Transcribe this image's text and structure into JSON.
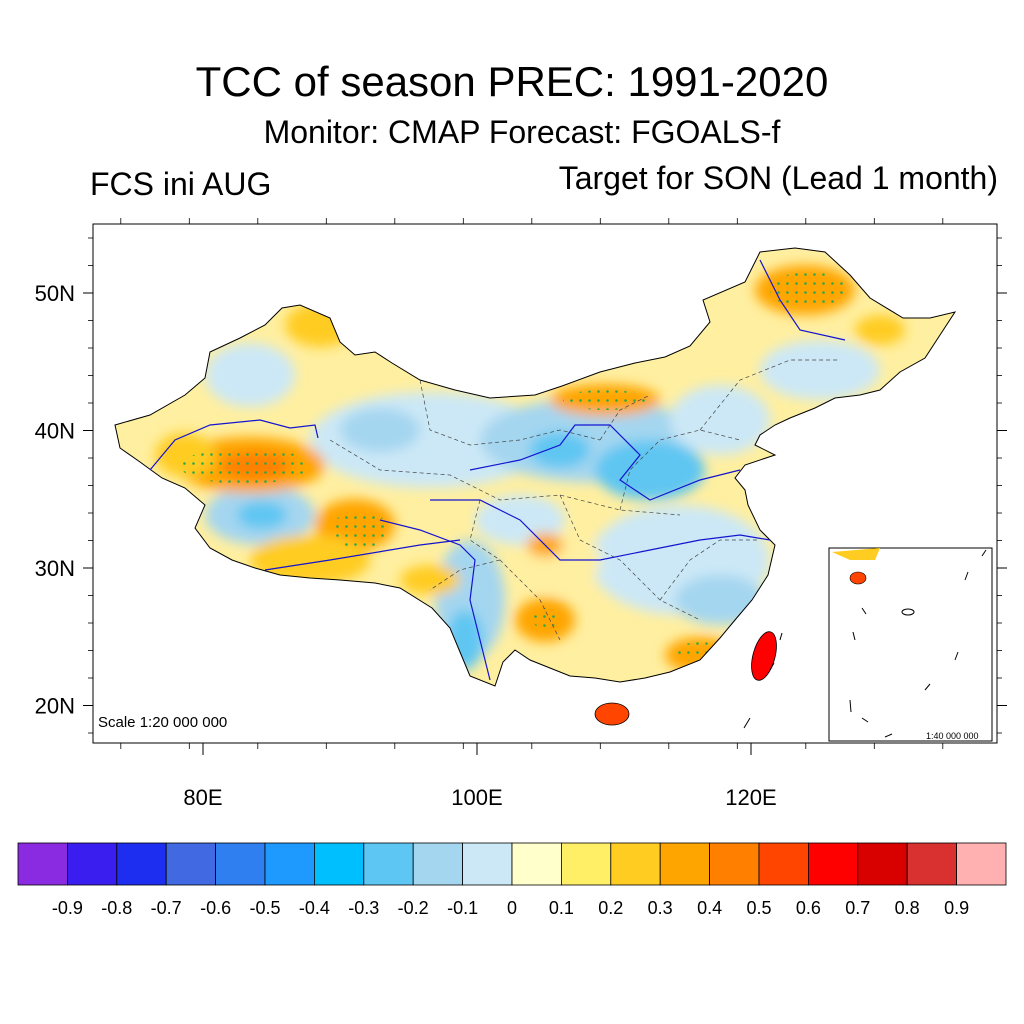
{
  "title": "TCC of season PREC: 1991-2020",
  "subtitle": "Monitor: CMAP   Forecast: FGOALS-f",
  "left_string": "FCS ini AUG",
  "right_string": "Target for SON (Lead 1 month)",
  "map": {
    "region": "China",
    "lon_range": [
      72,
      138
    ],
    "lat_range": [
      17,
      55
    ],
    "lat_ticks": [
      {
        "label": "50N",
        "value": 50
      },
      {
        "label": "40N",
        "value": 40
      },
      {
        "label": "30N",
        "value": 30
      },
      {
        "label": "20N",
        "value": 20
      }
    ],
    "lon_ticks": [
      {
        "label": "80E",
        "value": 80
      },
      {
        "label": "100E",
        "value": 100
      },
      {
        "label": "120E",
        "value": 120
      }
    ],
    "scale_text": "Scale 1:20 000 000",
    "inset_scale_text": "1:40 000 000",
    "stippling": "significant correlation (dots)"
  },
  "colorbar": {
    "colors": [
      "#8a2be2",
      "#3a1ef0",
      "#1d2ef0",
      "#4169e1",
      "#2f7ff0",
      "#1e9aff",
      "#00bfff",
      "#5ec6f2",
      "#a4d6f0",
      "#cce8f6",
      "#ffffcc",
      "#ffef66",
      "#ffcc22",
      "#ffa500",
      "#ff8000",
      "#ff4500",
      "#ff0000",
      "#d90000",
      "#d93030",
      "#ffb0b0"
    ],
    "labels": [
      "-0.9",
      "-0.8",
      "-0.7",
      "-0.6",
      "-0.5",
      "-0.4",
      "-0.3",
      "-0.2",
      "-0.1",
      "0",
      "0.1",
      "0.2",
      "0.3",
      "0.4",
      "0.5",
      "0.6",
      "0.7",
      "0.8",
      "0.9"
    ]
  }
}
